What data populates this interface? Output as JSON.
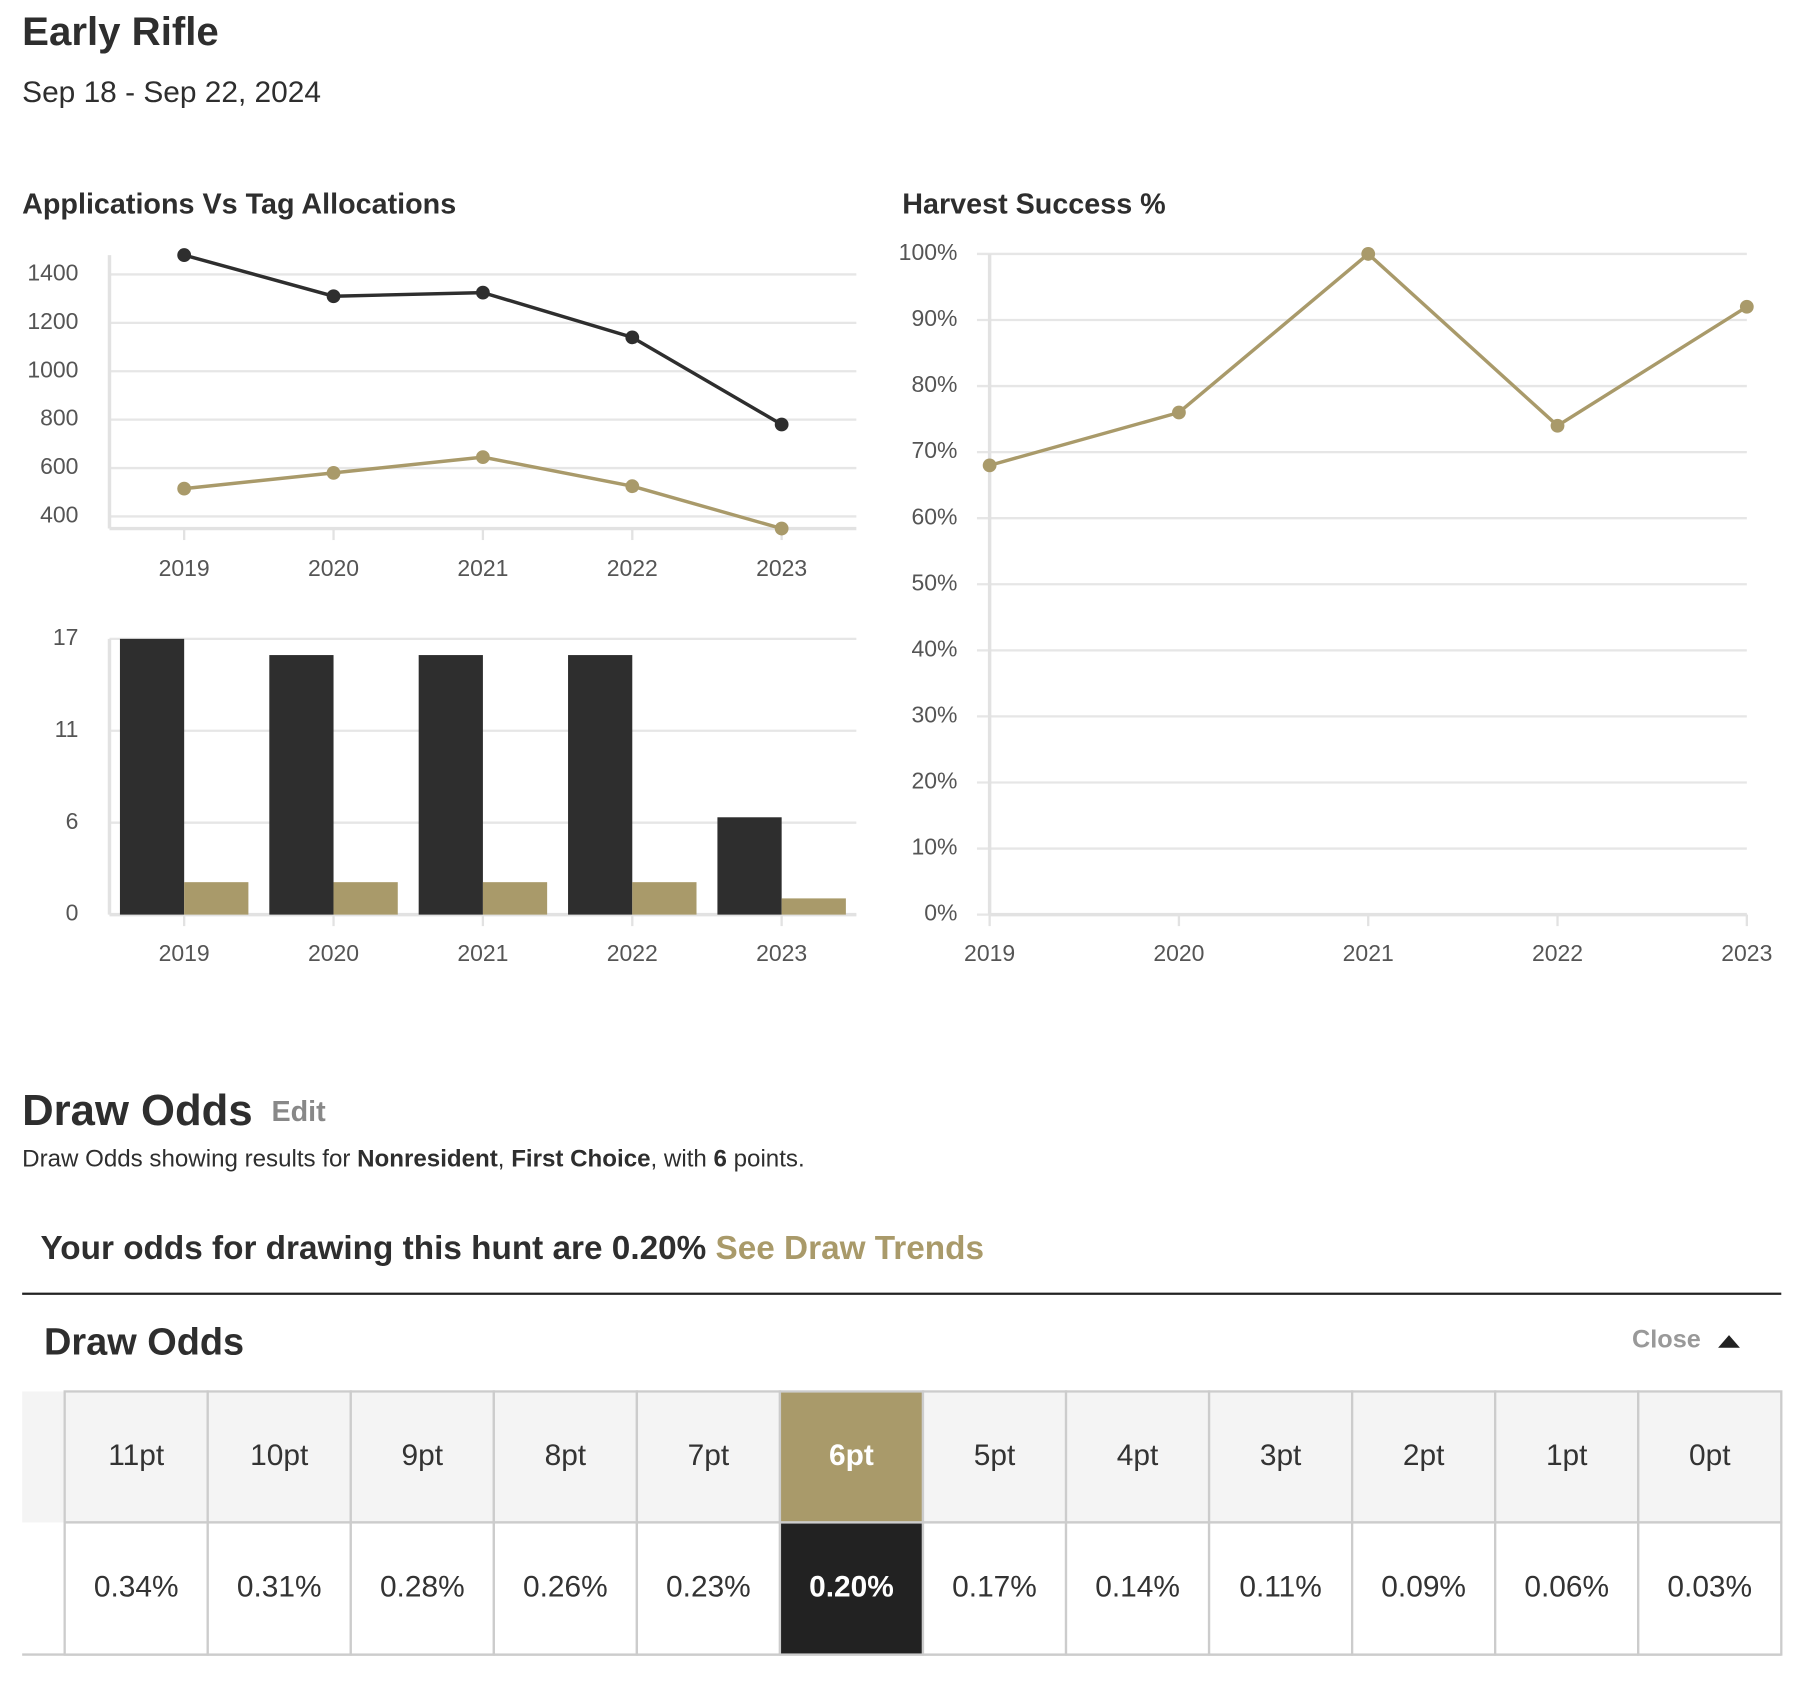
{
  "header": {
    "title": "Early Rifle",
    "dates": "Sep 18 - Sep 22, 2024"
  },
  "chart_data": [
    {
      "type": "line",
      "title": "Applications Vs Tag Allocations",
      "categories": [
        "2019",
        "2020",
        "2021",
        "2022",
        "2023"
      ],
      "series": [
        {
          "color": "#2e2e2e",
          "values": [
            1480,
            1310,
            1325,
            1140,
            780
          ]
        },
        {
          "color": "#a99a6a",
          "values": [
            515,
            580,
            645,
            525,
            350
          ]
        }
      ],
      "ylim": [
        350,
        1480
      ],
      "yticks": [
        400,
        600,
        800,
        1000,
        1200,
        1400
      ],
      "grid": true
    },
    {
      "type": "bar",
      "categories": [
        "2019",
        "2020",
        "2021",
        "2022",
        "2023"
      ],
      "series": [
        {
          "color": "#2e2e2e",
          "values": [
            17,
            16,
            16,
            16,
            6
          ]
        },
        {
          "color": "#a99a6a",
          "values": [
            2,
            2,
            2,
            2,
            1
          ]
        }
      ],
      "ylim": [
        0,
        17
      ],
      "yticks": [
        0,
        {
          "value": 5.667,
          "label": "6"
        },
        {
          "value": 11.333,
          "label": "11"
        },
        17
      ],
      "grid": true
    },
    {
      "type": "line",
      "title": "Harvest Success %",
      "categories": [
        "2019",
        "2020",
        "2021",
        "2022",
        "2023"
      ],
      "series": [
        {
          "color": "#a99a6a",
          "values": [
            68,
            76,
            100,
            74,
            92
          ]
        }
      ],
      "ylim": [
        0,
        100
      ],
      "yticks": [
        {
          "value": 0,
          "label": "0%"
        },
        {
          "value": 10,
          "label": "10%"
        },
        {
          "value": 20,
          "label": "20%"
        },
        {
          "value": 30,
          "label": "30%"
        },
        {
          "value": 40,
          "label": "40%"
        },
        {
          "value": 50,
          "label": "50%"
        },
        {
          "value": 60,
          "label": "60%"
        },
        {
          "value": 70,
          "label": "70%"
        },
        {
          "value": 80,
          "label": "80%"
        },
        {
          "value": 90,
          "label": "90%"
        },
        {
          "value": 100,
          "label": "100%"
        }
      ],
      "grid": true
    }
  ],
  "draw_odds": {
    "title": "Draw Odds",
    "edit": "Edit",
    "description": [
      "Draw Odds showing results for ",
      "Nonresident",
      ", ",
      "First Choice",
      ", with ",
      "6",
      " points."
    ],
    "odds_text": "Your odds for drawing this hunt are 0.20%",
    "trends_link": "See Draw Trends",
    "panel_title": "Draw Odds",
    "close": "Close",
    "table": {
      "selected": 5,
      "header": [
        "11pt",
        "10pt",
        "9pt",
        "8pt",
        "7pt",
        "6pt",
        "5pt",
        "4pt",
        "3pt",
        "2pt",
        "1pt",
        "0pt"
      ],
      "values": [
        "0.34%",
        "0.31%",
        "0.28%",
        "0.26%",
        "0.23%",
        "0.20%",
        "0.17%",
        "0.14%",
        "0.11%",
        "0.09%",
        "0.06%",
        "0.03%"
      ]
    }
  }
}
